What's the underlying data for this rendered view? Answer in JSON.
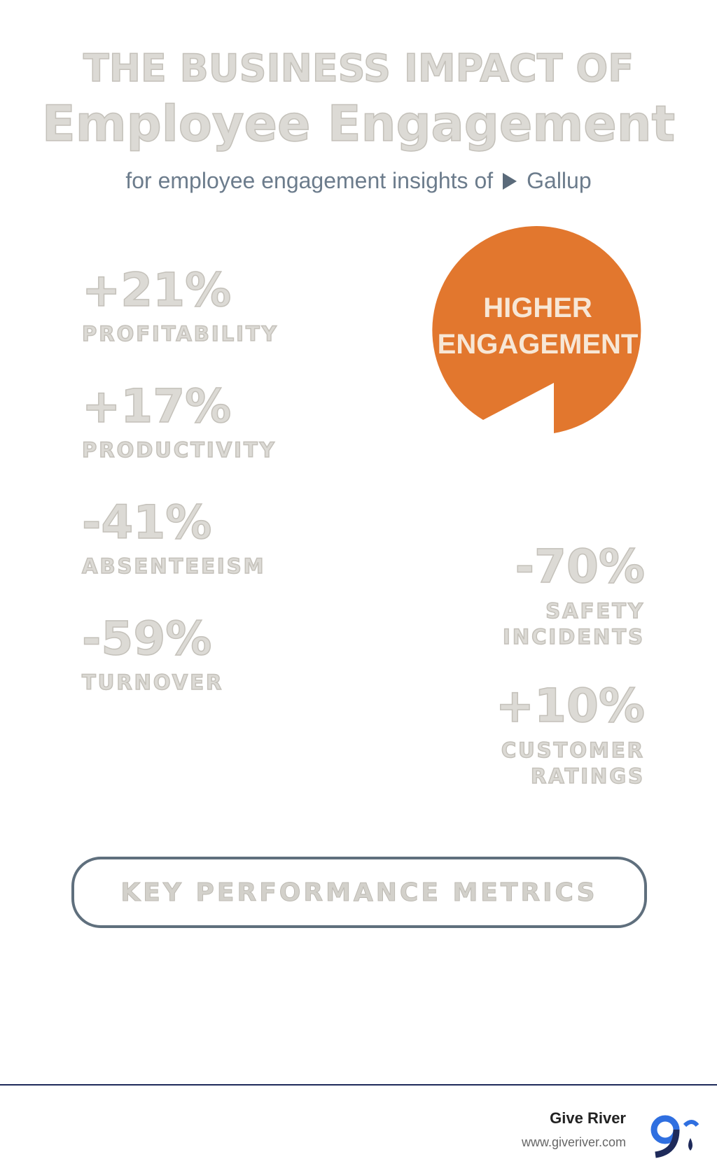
{
  "header": {
    "title_line1": "THE BUSINESS IMPACT OF",
    "title_line2": "Employee Engagement",
    "subtitle": "for employee engagement insights of",
    "source": "Gallup"
  },
  "badge": {
    "line1": "HIGHER",
    "line2": "ENGAGEMENT"
  },
  "left_metrics": [
    {
      "value": "+21%",
      "label": [
        "PROFITABILITY"
      ]
    },
    {
      "value": "+17%",
      "label": [
        "PRODUCTIVITY"
      ]
    },
    {
      "value": "-41%",
      "label": [
        "ABSENTEEISM"
      ]
    },
    {
      "value": "-59%",
      "label": [
        "TURNOVER"
      ]
    }
  ],
  "right_metrics": [
    {
      "value": "-70%",
      "label": [
        "SAFETY",
        "INCIDENTS"
      ]
    },
    {
      "value": "+10%",
      "label": [
        "CUSTOMER",
        "RATINGS"
      ]
    }
  ],
  "footer_box": "KEY PERFORMANCE METRICS",
  "footer": {
    "brand": "Give River",
    "url": "www.giveriver.com"
  }
}
